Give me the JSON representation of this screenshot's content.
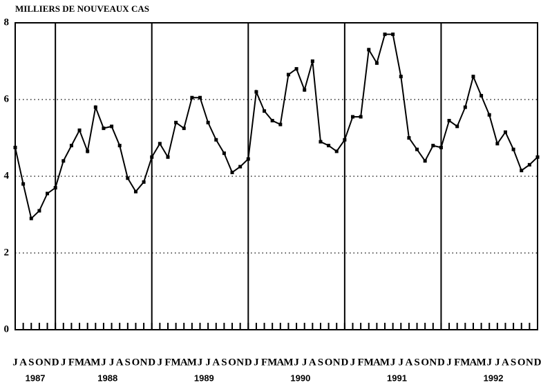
{
  "chart_data": {
    "type": "line",
    "ylabel": "MILLIERS DE NOUVEAUX CAS",
    "categories": [
      "J",
      "A",
      "S",
      "O",
      "N",
      "D",
      "J",
      "F",
      "M",
      "A",
      "M",
      "J",
      "J",
      "A",
      "S",
      "O",
      "N",
      "D",
      "J",
      "F",
      "M",
      "A",
      "M",
      "J",
      "J",
      "A",
      "S",
      "O",
      "N",
      "D",
      "J",
      "F",
      "M",
      "A",
      "M",
      "J",
      "J",
      "A",
      "S",
      "O",
      "N",
      "D",
      "J",
      "F",
      "M",
      "A",
      "M",
      "J",
      "J",
      "A",
      "S",
      "O",
      "N",
      "D",
      "J",
      "F",
      "M",
      "A",
      "M",
      "J",
      "J",
      "A",
      "S",
      "O",
      "N",
      "D"
    ],
    "years": [
      "1987",
      "1988",
      "1989",
      "1990",
      "1991",
      "1992"
    ],
    "values": [
      4.75,
      3.8,
      2.9,
      3.1,
      3.55,
      3.7,
      4.4,
      4.8,
      5.2,
      4.65,
      5.8,
      5.25,
      5.3,
      4.8,
      3.95,
      3.6,
      3.85,
      4.5,
      4.85,
      4.5,
      5.4,
      5.25,
      6.05,
      6.05,
      5.4,
      4.95,
      4.6,
      4.1,
      4.25,
      4.45,
      6.2,
      5.7,
      5.45,
      5.35,
      6.65,
      6.8,
      6.25,
      7.0,
      4.9,
      4.8,
      4.65,
      4.95,
      5.55,
      5.55,
      7.3,
      6.95,
      7.7,
      7.7,
      6.6,
      5.0,
      4.7,
      4.4,
      4.8,
      4.75,
      5.45,
      5.3,
      5.8,
      6.6,
      6.1,
      5.6,
      4.85,
      5.15,
      4.7,
      4.15,
      4.3,
      4.5
    ],
    "color": "#000000",
    "ylim": [
      0,
      8
    ],
    "yticks": [
      0,
      2,
      4,
      6,
      8
    ],
    "grid": true
  }
}
